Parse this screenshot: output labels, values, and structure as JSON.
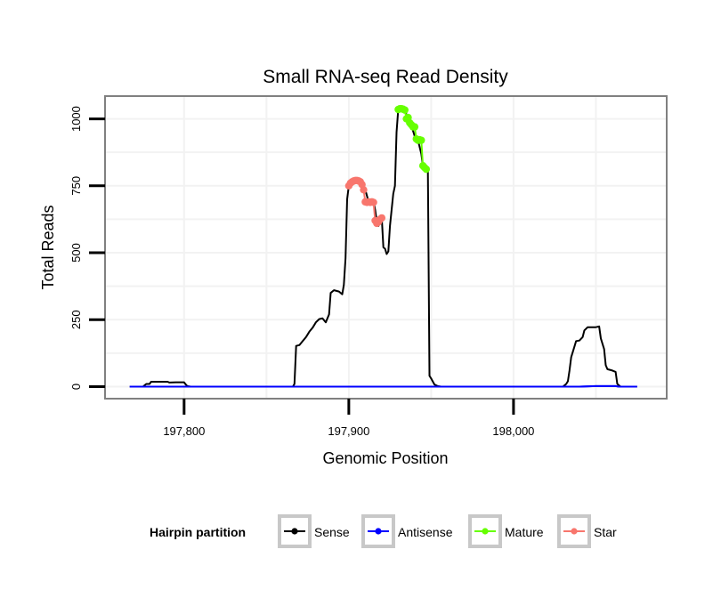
{
  "chart_data": {
    "type": "line",
    "title": "Small RNA-seq Read Density",
    "xlabel": "Genomic Position",
    "ylabel": "Total Reads",
    "xlim": [
      197752,
      198093
    ],
    "ylim": [
      -45,
      1085
    ],
    "x_ticks": [
      {
        "value": 197800,
        "label": "197,800"
      },
      {
        "value": 197900,
        "label": "197,900"
      },
      {
        "value": 198000,
        "label": "198,000"
      }
    ],
    "y_ticks": [
      {
        "value": 0,
        "label": "0"
      },
      {
        "value": 250,
        "label": "250"
      },
      {
        "value": 500,
        "label": "500"
      },
      {
        "value": 750,
        "label": "750"
      },
      {
        "value": 1000,
        "label": "1000"
      }
    ],
    "grid": true,
    "legend": {
      "title": "Hairpin partition",
      "placement": "bottom",
      "entries": [
        {
          "name": "Sense",
          "color": "#000000"
        },
        {
          "name": "Antisense",
          "color": "#0000ff"
        },
        {
          "name": "Mature",
          "color": "#66ff00"
        },
        {
          "name": "Star",
          "color": "#f8766d"
        }
      ]
    },
    "series": [
      {
        "name": "Sense",
        "color": "#000000",
        "points": [
          [
            197767,
            0
          ],
          [
            197775,
            0
          ],
          [
            197777,
            10
          ],
          [
            197779,
            10
          ],
          [
            197780,
            18
          ],
          [
            197790,
            18
          ],
          [
            197791,
            15
          ],
          [
            197795,
            16
          ],
          [
            197800,
            16
          ],
          [
            197801,
            8
          ],
          [
            197802,
            2
          ],
          [
            197804,
            0
          ],
          [
            197866,
            0
          ],
          [
            197867,
            10
          ],
          [
            197868,
            152
          ],
          [
            197870,
            155
          ],
          [
            197872,
            170
          ],
          [
            197874,
            185
          ],
          [
            197876,
            205
          ],
          [
            197878,
            220
          ],
          [
            197880,
            240
          ],
          [
            197882,
            252
          ],
          [
            197884,
            255
          ],
          [
            197886,
            240
          ],
          [
            197888,
            270
          ],
          [
            197889,
            350
          ],
          [
            197891,
            360
          ],
          [
            197894,
            355
          ],
          [
            197896,
            345
          ],
          [
            197897,
            380
          ],
          [
            197898,
            480
          ],
          [
            197899,
            700
          ],
          [
            197900,
            750
          ],
          [
            197902,
            760
          ],
          [
            197905,
            765
          ],
          [
            197908,
            760
          ],
          [
            197910,
            735
          ],
          [
            197912,
            690
          ],
          [
            197915,
            690
          ],
          [
            197916,
            660
          ],
          [
            197917,
            615
          ],
          [
            197918,
            600
          ],
          [
            197920,
            630
          ],
          [
            197921,
            520
          ],
          [
            197922,
            515
          ],
          [
            197923,
            495
          ],
          [
            197924,
            505
          ],
          [
            197925,
            600
          ],
          [
            197927,
            720
          ],
          [
            197928,
            750
          ],
          [
            197929,
            950
          ],
          [
            197930,
            1035
          ],
          [
            197934,
            1040
          ],
          [
            197935,
            1015
          ],
          [
            197936,
            990
          ],
          [
            197938,
            975
          ],
          [
            197940,
            935
          ],
          [
            197942,
            920
          ],
          [
            197944,
            870
          ],
          [
            197945,
            825
          ],
          [
            197947,
            815
          ],
          [
            197948,
            810
          ],
          [
            197949,
            40
          ],
          [
            197950,
            30
          ],
          [
            197952,
            8
          ],
          [
            197954,
            2
          ],
          [
            197956,
            0
          ],
          [
            198030,
            0
          ],
          [
            198032,
            10
          ],
          [
            198033,
            20
          ],
          [
            198034,
            60
          ],
          [
            198035,
            110
          ],
          [
            198037,
            150
          ],
          [
            198038,
            170
          ],
          [
            198040,
            172
          ],
          [
            198042,
            185
          ],
          [
            198043,
            210
          ],
          [
            198045,
            222
          ],
          [
            198050,
            222
          ],
          [
            198052,
            225
          ],
          [
            198053,
            180
          ],
          [
            198055,
            140
          ],
          [
            198056,
            80
          ],
          [
            198057,
            65
          ],
          [
            198060,
            60
          ],
          [
            198062,
            55
          ],
          [
            198063,
            10
          ],
          [
            198065,
            0
          ],
          [
            198075,
            0
          ]
        ]
      },
      {
        "name": "Antisense",
        "color": "#0000ff",
        "points": [
          [
            197767,
            0
          ],
          [
            198040,
            0
          ],
          [
            198050,
            2
          ],
          [
            198062,
            2
          ],
          [
            198064,
            0
          ],
          [
            198075,
            0
          ]
        ]
      },
      {
        "name": "Mature",
        "color": "#66ff00",
        "points": [
          [
            197930,
            1035
          ],
          [
            197931,
            1038
          ],
          [
            197932,
            1038
          ],
          [
            197933,
            1036
          ],
          [
            197934,
            1033
          ],
          [
            197935,
            1000
          ],
          [
            197936,
            1005
          ],
          [
            197937,
            985
          ],
          [
            197938,
            978
          ],
          [
            197939,
            970
          ],
          [
            197940,
            970
          ],
          [
            197941,
            925
          ],
          [
            197942,
            920
          ],
          [
            197943,
            922
          ],
          [
            197944,
            920
          ],
          [
            197945,
            825
          ],
          [
            197946,
            818
          ],
          [
            197947,
            812
          ]
        ]
      },
      {
        "name": "Star",
        "color": "#f8766d",
        "points": [
          [
            197900,
            750
          ],
          [
            197901,
            760
          ],
          [
            197902,
            765
          ],
          [
            197903,
            768
          ],
          [
            197904,
            770
          ],
          [
            197905,
            770
          ],
          [
            197906,
            768
          ],
          [
            197907,
            765
          ],
          [
            197908,
            755
          ],
          [
            197909,
            735
          ],
          [
            197910,
            690
          ],
          [
            197911,
            688
          ],
          [
            197912,
            690
          ],
          [
            197913,
            688
          ],
          [
            197914,
            690
          ],
          [
            197915,
            688
          ],
          [
            197916,
            620
          ],
          [
            197917,
            610
          ],
          [
            197918,
            615
          ],
          [
            197919,
            625
          ],
          [
            197920,
            630
          ]
        ]
      }
    ]
  }
}
